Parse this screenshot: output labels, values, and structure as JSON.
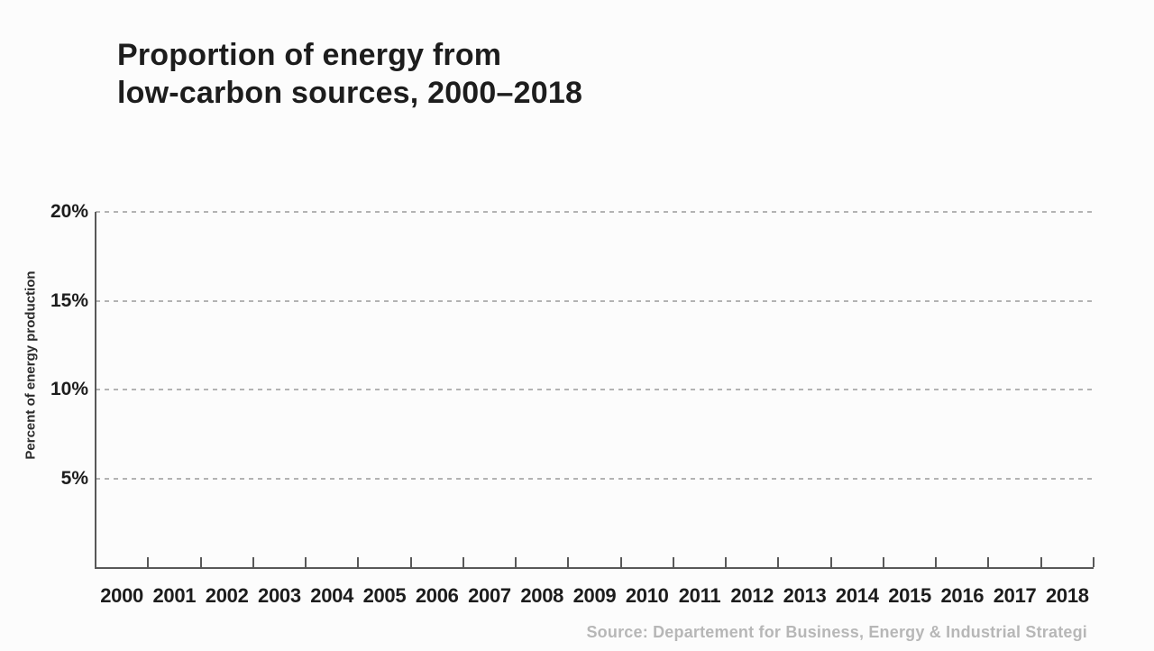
{
  "colors": {
    "background": "#fcfcfc",
    "title": "#1d1d1d",
    "tick_label": "#1d1d1d",
    "axis": "#585858",
    "gridline": "#b3b3b3",
    "source_text": "#b7b7b7"
  },
  "chart_data": {
    "type": "line",
    "title": "Proportion of energy from\nlow-carbon sources, 2000–2018",
    "ylabel": "Percent of energy production",
    "xlabel": "",
    "categories": [
      "2000",
      "2001",
      "2002",
      "2003",
      "2004",
      "2005",
      "2006",
      "2007",
      "2008",
      "2009",
      "2010",
      "2011",
      "2012",
      "2013",
      "2014",
      "2015",
      "2016",
      "2017",
      "2018"
    ],
    "series": [],
    "y_ticks": [
      {
        "value": 5,
        "label": "5%"
      },
      {
        "value": 10,
        "label": "10%"
      },
      {
        "value": 15,
        "label": "15%"
      },
      {
        "value": 20,
        "label": "20%"
      }
    ],
    "ylim": [
      0,
      20
    ],
    "grid": "horizontal dashed",
    "legend": "none",
    "source": "Source: Departement for Business, Energy & Industrial Strategi"
  }
}
